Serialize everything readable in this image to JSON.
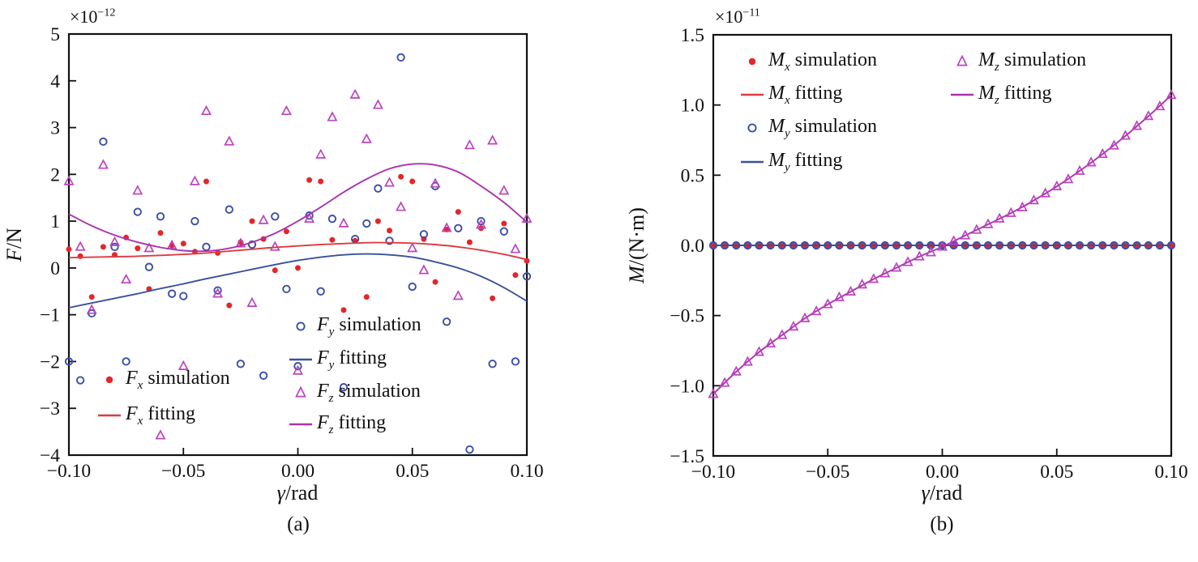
{
  "page": {
    "background": "#ffffff"
  },
  "chart_data": [
    {
      "id": "a",
      "type": "scatter",
      "caption": "(a)",
      "offset": {
        "base": "×10",
        "exp": "−12"
      },
      "xlabel": {
        "var": "γ",
        "rest": "/rad"
      },
      "ylabel": {
        "var": "F",
        "rest": "/N"
      },
      "xlim": [
        -0.1,
        0.1
      ],
      "ylim": [
        -4,
        5
      ],
      "xticks": {
        "values": [
          -0.1,
          -0.05,
          0.0,
          0.05,
          0.1
        ],
        "labels": [
          "−0.10",
          "−0.05",
          "0.00",
          "0.05",
          "0.10"
        ]
      },
      "yticks": {
        "values": [
          5,
          4,
          3,
          2,
          1,
          0,
          -1,
          -2,
          -3,
          -4
        ],
        "labels": [
          "5",
          "4",
          "3",
          "2",
          "1",
          "0",
          "−1",
          "−2",
          "−3",
          "−4"
        ]
      },
      "grid": false,
      "series": [
        {
          "name": "Fx simulation",
          "kind": "scatter",
          "marker": "dot",
          "color": "#e4262b",
          "x_start": -0.1,
          "x_step": 0.005,
          "values": [
            0.4,
            0.25,
            -0.62,
            0.45,
            0.28,
            0.65,
            0.42,
            -0.45,
            0.75,
            0.48,
            0.52,
            0.35,
            1.85,
            0.32,
            -0.8,
            0.55,
            1.0,
            0.62,
            -0.05,
            0.78,
            0.0,
            1.88,
            1.85,
            0.6,
            -0.9,
            0.58,
            -0.62,
            1.0,
            0.8,
            1.95,
            1.85,
            0.62,
            -0.3,
            0.82,
            1.2,
            0.55,
            0.85,
            -0.65,
            0.95,
            -0.15,
            0.15
          ]
        },
        {
          "name": "Fy simulation",
          "kind": "scatter",
          "marker": "circle",
          "color": "#3b4ea4",
          "x_start": -0.1,
          "x_step": 0.005,
          "values": [
            -2.0,
            -2.4,
            -0.97,
            2.7,
            0.45,
            -2.0,
            1.2,
            0.02,
            1.1,
            -0.55,
            -0.6,
            1.0,
            0.45,
            -0.48,
            1.25,
            -2.05,
            0.5,
            -2.3,
            1.1,
            -0.45,
            -2.1,
            1.12,
            -0.5,
            1.05,
            -2.55,
            0.62,
            0.95,
            1.7,
            0.58,
            4.5,
            -0.4,
            0.72,
            1.75,
            -1.15,
            0.85,
            -3.88,
            1.0,
            -2.05,
            0.78,
            -2.0,
            -0.18
          ]
        },
        {
          "name": "Fz simulation",
          "kind": "scatter",
          "marker": "triangle",
          "color": "#bb44be",
          "x_start": -0.1,
          "x_step": 0.005,
          "values": [
            1.85,
            0.45,
            -0.9,
            2.2,
            0.55,
            -0.25,
            1.65,
            0.42,
            -3.58,
            0.48,
            -2.1,
            1.85,
            3.35,
            -0.55,
            2.7,
            0.52,
            -0.75,
            1.02,
            0.45,
            3.35,
            -2.2,
            1.05,
            2.42,
            3.22,
            0.95,
            3.7,
            2.75,
            3.48,
            1.82,
            1.3,
            0.42,
            -0.05,
            1.8,
            0.85,
            -0.6,
            2.62,
            0.92,
            2.72,
            1.65,
            0.4,
            1.05
          ]
        },
        {
          "name": "Fx fitting",
          "kind": "line",
          "color": "#dd3c41",
          "x_start": -0.1,
          "x_step": 0.01,
          "values": [
            0.22,
            0.23,
            0.24,
            0.25,
            0.27,
            0.29,
            0.32,
            0.36,
            0.4,
            0.44,
            0.47,
            0.5,
            0.52,
            0.54,
            0.54,
            0.53,
            0.5,
            0.45,
            0.38,
            0.29,
            0.18
          ]
        },
        {
          "name": "Fy fitting",
          "kind": "line",
          "color": "#3a519b",
          "x_start": -0.1,
          "x_step": 0.01,
          "values": [
            -0.85,
            -0.75,
            -0.65,
            -0.55,
            -0.44,
            -0.34,
            -0.23,
            -0.13,
            -0.03,
            0.07,
            0.16,
            0.23,
            0.28,
            0.3,
            0.28,
            0.23,
            0.13,
            0.0,
            -0.18,
            -0.42,
            -0.71
          ]
        },
        {
          "name": "Fz fitting",
          "kind": "line",
          "color": "#ab32ae",
          "x_start": -0.1,
          "x_step": 0.01,
          "values": [
            1.15,
            0.9,
            0.7,
            0.55,
            0.44,
            0.37,
            0.36,
            0.42,
            0.55,
            0.74,
            1.0,
            1.3,
            1.62,
            1.9,
            2.12,
            2.22,
            2.2,
            2.05,
            1.75,
            1.4,
            0.98
          ]
        }
      ],
      "legend": {
        "columns": [
          [
            {
              "marker": "dot",
              "color": "#e4262b",
              "var": "F",
              "sub": "x",
              "label": "simulation"
            },
            {
              "marker": "line",
              "color": "#dd3c41",
              "var": "F",
              "sub": "x",
              "label": "fitting"
            }
          ],
          [
            {
              "marker": "circle",
              "color": "#3b4ea4",
              "var": "F",
              "sub": "y",
              "label": "simulation"
            },
            {
              "marker": "line",
              "color": "#3a519b",
              "var": "F",
              "sub": "y",
              "label": "fitting"
            },
            {
              "marker": "triangle",
              "color": "#bb44be",
              "var": "F",
              "sub": "z",
              "label": "simulation"
            },
            {
              "marker": "line",
              "color": "#ab32ae",
              "var": "F",
              "sub": "z",
              "label": "fitting"
            }
          ]
        ]
      }
    },
    {
      "id": "b",
      "type": "scatter",
      "caption": "(b)",
      "offset": {
        "base": "×10",
        "exp": "−11"
      },
      "xlabel": {
        "var": "γ",
        "rest": "/rad"
      },
      "ylabel": {
        "var": "M",
        "rest": "/(N·m)"
      },
      "xlim": [
        -0.1,
        0.1
      ],
      "ylim": [
        -1.5,
        1.5
      ],
      "xticks": {
        "values": [
          -0.1,
          -0.05,
          0.0,
          0.05,
          0.1
        ],
        "labels": [
          "−0.10",
          "−0.05",
          "0.00",
          "0.05",
          "0.10"
        ]
      },
      "yticks": {
        "values": [
          1.5,
          1.0,
          0.5,
          0.0,
          -0.5,
          -1.0,
          -1.5
        ],
        "labels": [
          "1.5",
          "1.0",
          "0.5",
          "0.0",
          "−0.5",
          "−1.0",
          "−1.5"
        ]
      },
      "grid": false,
      "series": [
        {
          "name": "Mx simulation",
          "kind": "scatter",
          "marker": "dot",
          "color": "#e4262b",
          "x_start": -0.1,
          "x_step": 0.005,
          "values": [
            0,
            0,
            0,
            0,
            0,
            0,
            0,
            0,
            0,
            0,
            0,
            0,
            0,
            0,
            0,
            0,
            0,
            0,
            0,
            0,
            0,
            0,
            0,
            0,
            0,
            0,
            0,
            0,
            0,
            0,
            0,
            0,
            0,
            0,
            0,
            0,
            0,
            0,
            0,
            0,
            0
          ]
        },
        {
          "name": "Mx fitting",
          "kind": "line",
          "color": "#dd3c41",
          "x_start": -0.1,
          "x_step": 0.2,
          "values": [
            0,
            0
          ]
        },
        {
          "name": "My fitting",
          "kind": "line",
          "color": "#3a519b",
          "x_start": -0.1,
          "x_step": 0.2,
          "values": [
            0,
            0
          ]
        },
        {
          "name": "My simulation",
          "kind": "scatter",
          "marker": "circle",
          "color": "#3b4ea4",
          "x_start": -0.1,
          "x_step": 0.005,
          "values": [
            0,
            0,
            0,
            0,
            0,
            0,
            0,
            0,
            0,
            0,
            0,
            0,
            0,
            0,
            0,
            0,
            0,
            0,
            0,
            0,
            0,
            0,
            0,
            0,
            0,
            0,
            0,
            0,
            0,
            0,
            0,
            0,
            0,
            0,
            0,
            0,
            0,
            0,
            0,
            0,
            0
          ]
        },
        {
          "name": "Mz fitting",
          "kind": "line",
          "color": "#ab32ae",
          "x_start": -0.1,
          "x_step": 0.01,
          "values": [
            -1.06,
            -0.9,
            -0.76,
            -0.64,
            -0.52,
            -0.42,
            -0.33,
            -0.24,
            -0.16,
            -0.08,
            -0.01,
            0.07,
            0.15,
            0.23,
            0.32,
            0.42,
            0.53,
            0.65,
            0.78,
            0.92,
            1.07
          ]
        },
        {
          "name": "Mz simulation",
          "kind": "scatter",
          "marker": "triangle",
          "color": "#bb44be",
          "x_start": -0.1,
          "x_step": 0.005,
          "values": [
            -1.06,
            -0.98,
            -0.9,
            -0.83,
            -0.76,
            -0.7,
            -0.64,
            -0.58,
            -0.52,
            -0.47,
            -0.42,
            -0.37,
            -0.33,
            -0.28,
            -0.24,
            -0.2,
            -0.16,
            -0.12,
            -0.08,
            -0.05,
            -0.01,
            0.03,
            0.07,
            0.11,
            0.15,
            0.19,
            0.23,
            0.27,
            0.32,
            0.37,
            0.42,
            0.47,
            0.53,
            0.59,
            0.65,
            0.71,
            0.78,
            0.85,
            0.92,
            0.99,
            1.07
          ]
        }
      ],
      "legend": {
        "columns": [
          [
            {
              "marker": "dot",
              "color": "#e4262b",
              "var": "M",
              "sub": "x",
              "label": "simulation"
            },
            {
              "marker": "line",
              "color": "#dd3c41",
              "var": "M",
              "sub": "x",
              "label": "fitting"
            },
            {
              "marker": "circle",
              "color": "#3b4ea4",
              "var": "M",
              "sub": "y",
              "label": "simulation"
            },
            {
              "marker": "line",
              "color": "#3a519b",
              "var": "M",
              "sub": "y",
              "label": "fitting"
            }
          ],
          [
            {
              "marker": "triangle",
              "color": "#bb44be",
              "var": "M",
              "sub": "z",
              "label": "simulation"
            },
            {
              "marker": "line",
              "color": "#ab32ae",
              "var": "M",
              "sub": "z",
              "label": "fitting"
            }
          ]
        ]
      }
    }
  ]
}
